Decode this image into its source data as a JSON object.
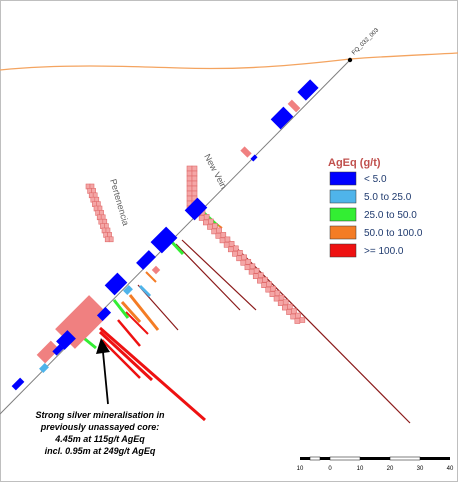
{
  "hole_id": "FQ_032_003",
  "vein_labels": {
    "new_vein": "New Vein",
    "pertenencia": "Pertenencia"
  },
  "legend": {
    "title": "AgEq (g/t)",
    "items": [
      {
        "label": "< 5.0",
        "color": "#0000ff"
      },
      {
        "label": "5.0 to 25.0",
        "color": "#4fb4ea"
      },
      {
        "label": "25.0 to 50.0",
        "color": "#33ee33"
      },
      {
        "label": "50.0 to 100.0",
        "color": "#f47c25"
      },
      {
        "label": ">= 100.0",
        "color": "#ee1111"
      }
    ]
  },
  "annotation": {
    "line1": "Strong silver mineralisation in",
    "line2": "previously unassayed core:",
    "line3": "4.45m at 115g/t AgEq",
    "line4": "incl. 0.95m at 249g/t AgEq"
  },
  "scale_bar": {
    "ticks": [
      "10",
      "0",
      "10",
      "20",
      "30",
      "40"
    ]
  },
  "colors": {
    "topography": "#f4a460",
    "drill_trace": "#7f7f7f",
    "historic_assay": "#f08080",
    "historic_trace": "#8b1a1a"
  }
}
